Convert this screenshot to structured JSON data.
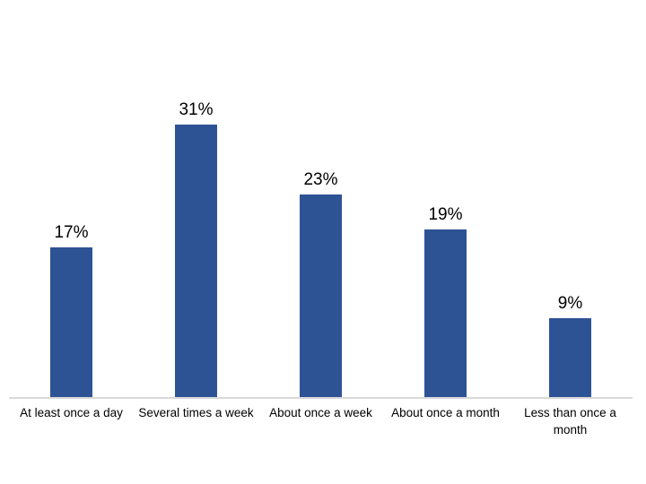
{
  "chart_data": {
    "type": "bar",
    "title": "",
    "xlabel": "",
    "ylabel": "",
    "categories": [
      "At least once a day",
      "Several times a week",
      "About once a week",
      "About once a month",
      "Less than once a month"
    ],
    "values": [
      17,
      31,
      23,
      19,
      9
    ],
    "value_labels": [
      "17%",
      "31%",
      "23%",
      "19%",
      "9%"
    ],
    "ylim": [
      0,
      45
    ],
    "grid": false,
    "legend": "none",
    "y_axis_visible": false,
    "x_axis_line_visible": true,
    "colors": {
      "bar": "#2E5395",
      "axis_line": "#D9D9D9",
      "value_label": "#000000",
      "category_label": "#000000",
      "background": "#FFFFFF"
    }
  }
}
